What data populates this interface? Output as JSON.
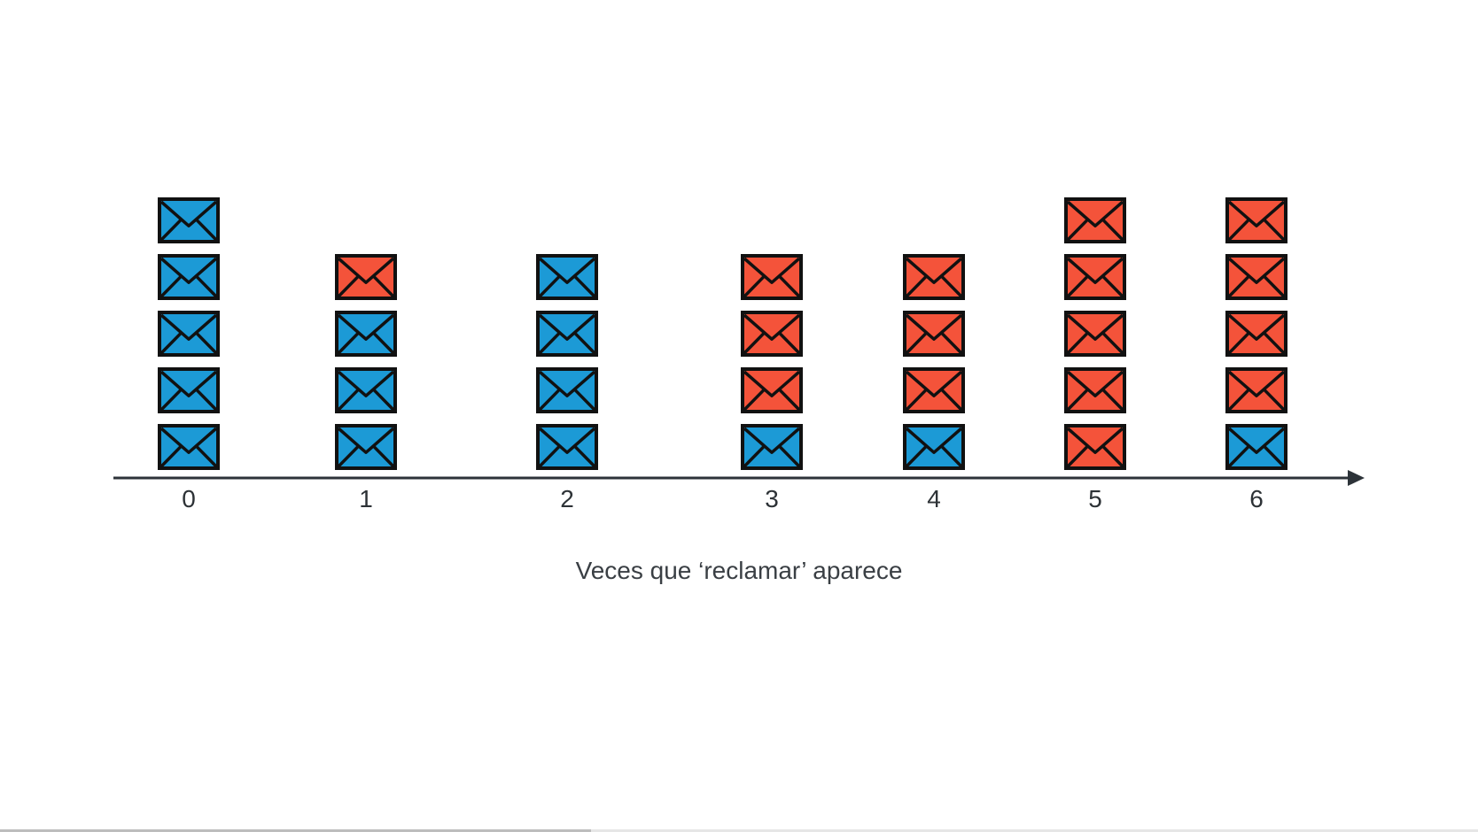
{
  "chart_data": {
    "type": "bar",
    "xlabel": "Veces que ‘reclamar’ aparece",
    "categories": [
      "0",
      "1",
      "2",
      "3",
      "4",
      "5",
      "6"
    ],
    "stacks": [
      [
        "blue",
        "blue",
        "blue",
        "blue",
        "blue"
      ],
      [
        "blue",
        "blue",
        "blue",
        "red"
      ],
      [
        "blue",
        "blue",
        "blue",
        "blue"
      ],
      [
        "blue",
        "red",
        "red",
        "red"
      ],
      [
        "blue",
        "red",
        "red",
        "red"
      ],
      [
        "red",
        "red",
        "red",
        "red",
        "red"
      ],
      [
        "blue",
        "red",
        "red",
        "red",
        "red"
      ]
    ],
    "series": [
      {
        "color": "blue",
        "values": [
          5,
          3,
          4,
          1,
          1,
          0,
          1
        ]
      },
      {
        "color": "red",
        "values": [
          0,
          1,
          0,
          3,
          3,
          5,
          4
        ]
      }
    ],
    "colors": {
      "blue": "#1c9ad6",
      "red": "#f4533a",
      "outline": "#111111",
      "axis": "#2d3339"
    },
    "icon": "envelope-icon"
  },
  "progress": {
    "fraction": 0.4
  }
}
